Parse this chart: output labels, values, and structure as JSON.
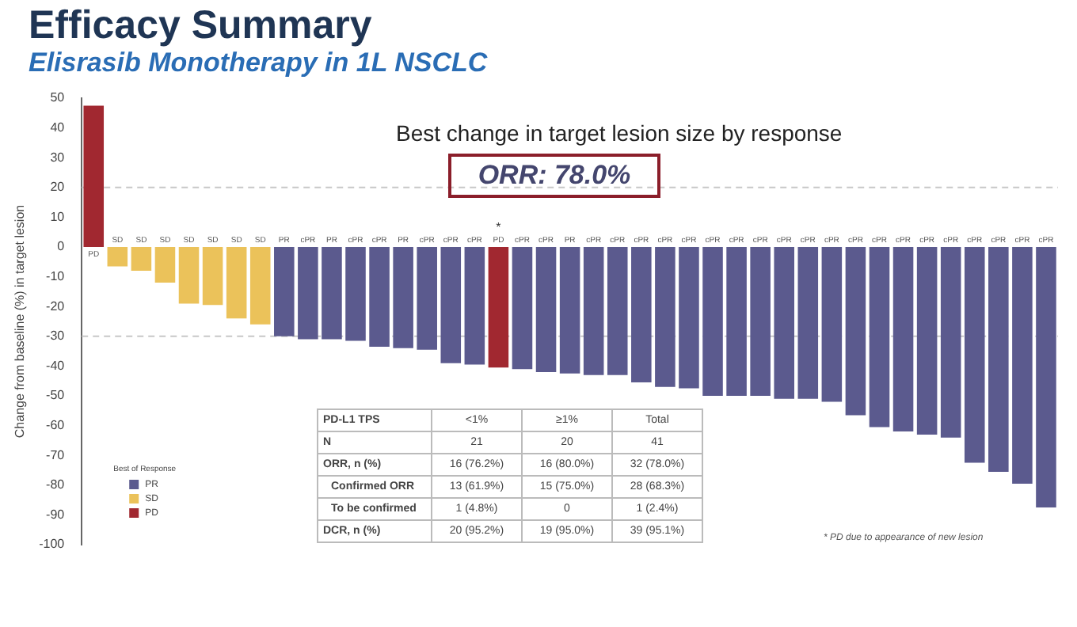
{
  "chart_data": {
    "type": "bar",
    "title": "Efficacy Summary",
    "subtitle": "Elisrasib Monotherapy in 1L NSCLC",
    "ylabel": "Change from baseline (%) in target lesion",
    "categories": [
      "PD",
      "SD",
      "SD",
      "SD",
      "SD",
      "SD",
      "SD",
      "SD",
      "PR",
      "cPR",
      "PR",
      "cPR",
      "cPR",
      "PR",
      "cPR",
      "cPR",
      "cPR",
      "PD",
      "cPR",
      "cPR",
      "PR",
      "cPR",
      "cPR",
      "cPR",
      "cPR",
      "cPR",
      "cPR",
      "cPR",
      "cPR",
      "cPR",
      "cPR",
      "cPR",
      "cPR",
      "cPR",
      "cPR",
      "cPR",
      "cPR",
      "cPR",
      "cPR",
      "cPR",
      "cPR"
    ],
    "stacked": true,
    "series": [
      {
        "name": "PR",
        "color": "#5b5a8e",
        "values": [
          null,
          null,
          null,
          null,
          null,
          null,
          null,
          null,
          -30,
          -31,
          -31,
          -31.5,
          -33.5,
          -34,
          -34.5,
          -39,
          -39.5,
          null,
          -41,
          -42,
          -42.5,
          -43,
          -43,
          -45.5,
          -47,
          -47.5,
          -50,
          -50,
          -50,
          -51,
          -51,
          -52,
          -56.5,
          -60.5,
          -62,
          -63,
          -64,
          -72.5,
          -75.5,
          -79.5,
          -87.5
        ]
      },
      {
        "name": "SD",
        "color": "#ebc25a",
        "values": [
          null,
          -6.5,
          -8,
          -12,
          -19,
          -19.5,
          -24,
          -26,
          null,
          null,
          null,
          null,
          null,
          null,
          null,
          null,
          null,
          null,
          null,
          null,
          null,
          null,
          null,
          null,
          null,
          null,
          null,
          null,
          null,
          null,
          null,
          null,
          null,
          null,
          null,
          null,
          null,
          null,
          null,
          null,
          null
        ]
      },
      {
        "name": "PD",
        "color": "#a12830",
        "values": [
          47.5,
          null,
          null,
          null,
          null,
          null,
          null,
          null,
          null,
          null,
          null,
          null,
          null,
          null,
          null,
          null,
          null,
          -40.5,
          null,
          null,
          null,
          null,
          null,
          null,
          null,
          null,
          null,
          null,
          null,
          null,
          null,
          null,
          null,
          null,
          null,
          null,
          null,
          null,
          null,
          null,
          null
        ]
      }
    ],
    "legend_title": "Best of Response",
    "legend": "bottom left",
    "ylim": [
      -100,
      50
    ],
    "yticks": [
      -100,
      -90,
      -80,
      -70,
      -60,
      -50,
      -40,
      -30,
      -20,
      -10,
      0,
      10,
      20,
      30,
      40,
      50
    ],
    "grid": false,
    "ref_lines": [
      {
        "axis": "y",
        "value": 20,
        "color": "#c8c8c8",
        "line_style": "dashed"
      },
      {
        "axis": "y",
        "value": -30,
        "color": "#c8c8c8",
        "line_style": "dashed"
      }
    ],
    "annotations": [
      "Best change in target lesion size by response",
      "ORR: 78.0%",
      "PD-L1 TPS",
      "<1%",
      "≥1%",
      "Total",
      "N",
      "21",
      "20",
      "41",
      "ORR, n (%)",
      "16 (76.2%)",
      "16 (80.0%)",
      "32 (78.0%)",
      "Confirmed ORR",
      "13 (61.9%)",
      "15 (75.0%)",
      "28 (68.3%)",
      "To be confirmed",
      "1 (4.8%)",
      "0",
      "1 (2.4%)",
      "DCR, n (%)",
      "20 (95.2%)",
      "19 (95.0%)",
      "39 (95.1%)",
      "* PD due to appearance of new lesion",
      "*"
    ]
  }
}
